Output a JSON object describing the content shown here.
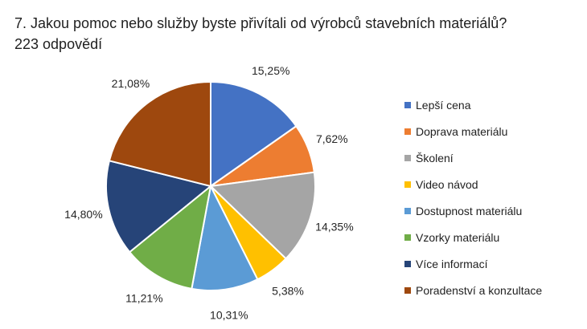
{
  "chart_data": {
    "type": "pie",
    "title": "7. Jakou pomoc nebo služby byste přivítali od výrobců stavebních materiálů? 223 odpovědí",
    "categories": [
      "Lepší cena",
      "Doprava materiálu",
      "Školení",
      "Video návod",
      "Dostupnost materiálu",
      "Vzorky materiálu",
      "Více informací",
      "Poradenství a konzultace"
    ],
    "values": [
      15.25,
      7.62,
      14.35,
      5.38,
      10.31,
      11.21,
      14.8,
      21.08
    ],
    "labels": [
      "15,25%",
      "7,62%",
      "14,35%",
      "5,38%",
      "10,31%",
      "11,21%",
      "14,80%",
      "21,08%"
    ],
    "colors": [
      "#4472C4",
      "#ED7D31",
      "#A5A5A5",
      "#FFC000",
      "#5B9BD5",
      "#70AD47",
      "#264478",
      "#9E480E"
    ],
    "legend_position": "right"
  }
}
